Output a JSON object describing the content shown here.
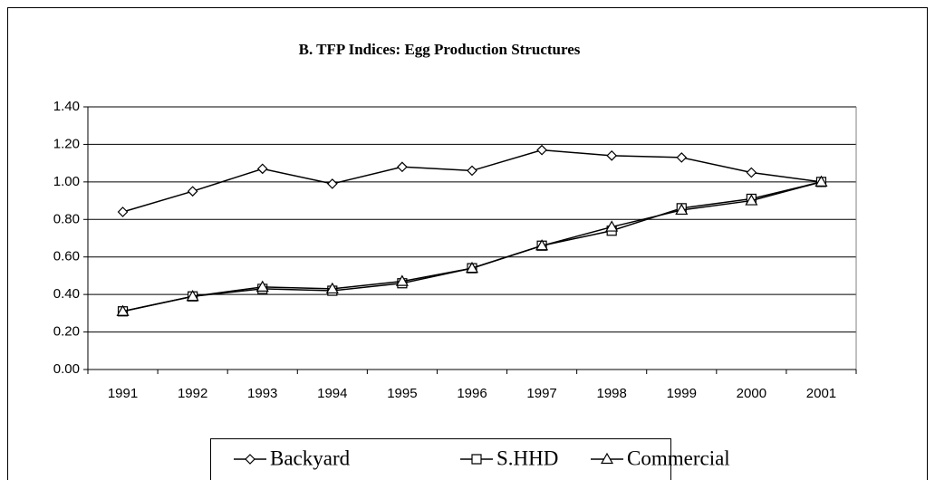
{
  "chart_data": {
    "type": "line",
    "title": "B. TFP Indices: Egg Production Structures",
    "categories": [
      "1991",
      "1992",
      "1993",
      "1994",
      "1995",
      "1996",
      "1997",
      "1998",
      "1999",
      "2000",
      "2001"
    ],
    "series": [
      {
        "name": "Backyard",
        "color": "#000000",
        "marker": "diamond",
        "values": [
          0.84,
          0.95,
          1.07,
          0.99,
          1.08,
          1.06,
          1.17,
          1.14,
          1.13,
          1.05,
          1.0
        ]
      },
      {
        "name": "S.HHD",
        "color": "#000000",
        "marker": "square",
        "values": [
          0.31,
          0.39,
          0.43,
          0.42,
          0.46,
          0.54,
          0.66,
          0.74,
          0.86,
          0.91,
          1.0
        ]
      },
      {
        "name": "Commercial",
        "color": "#000000",
        "marker": "triangle",
        "values": [
          0.31,
          0.39,
          0.44,
          0.43,
          0.47,
          0.54,
          0.66,
          0.76,
          0.85,
          0.9,
          1.0
        ]
      }
    ],
    "ylim": [
      0,
      1.4
    ],
    "yticks": [
      {
        "value": 0,
        "label": "0.00"
      },
      {
        "value": 0.2,
        "label": "0.20"
      },
      {
        "value": 0.4,
        "label": "0.40"
      },
      {
        "value": 0.6,
        "label": "0.60"
      },
      {
        "value": 0.8,
        "label": "0.80"
      },
      {
        "value": 1.0,
        "label": "1.00"
      },
      {
        "value": 1.2,
        "label": "1.20"
      },
      {
        "value": 1.4,
        "label": "1.40"
      }
    ],
    "grid": true,
    "legend": "bottom"
  }
}
